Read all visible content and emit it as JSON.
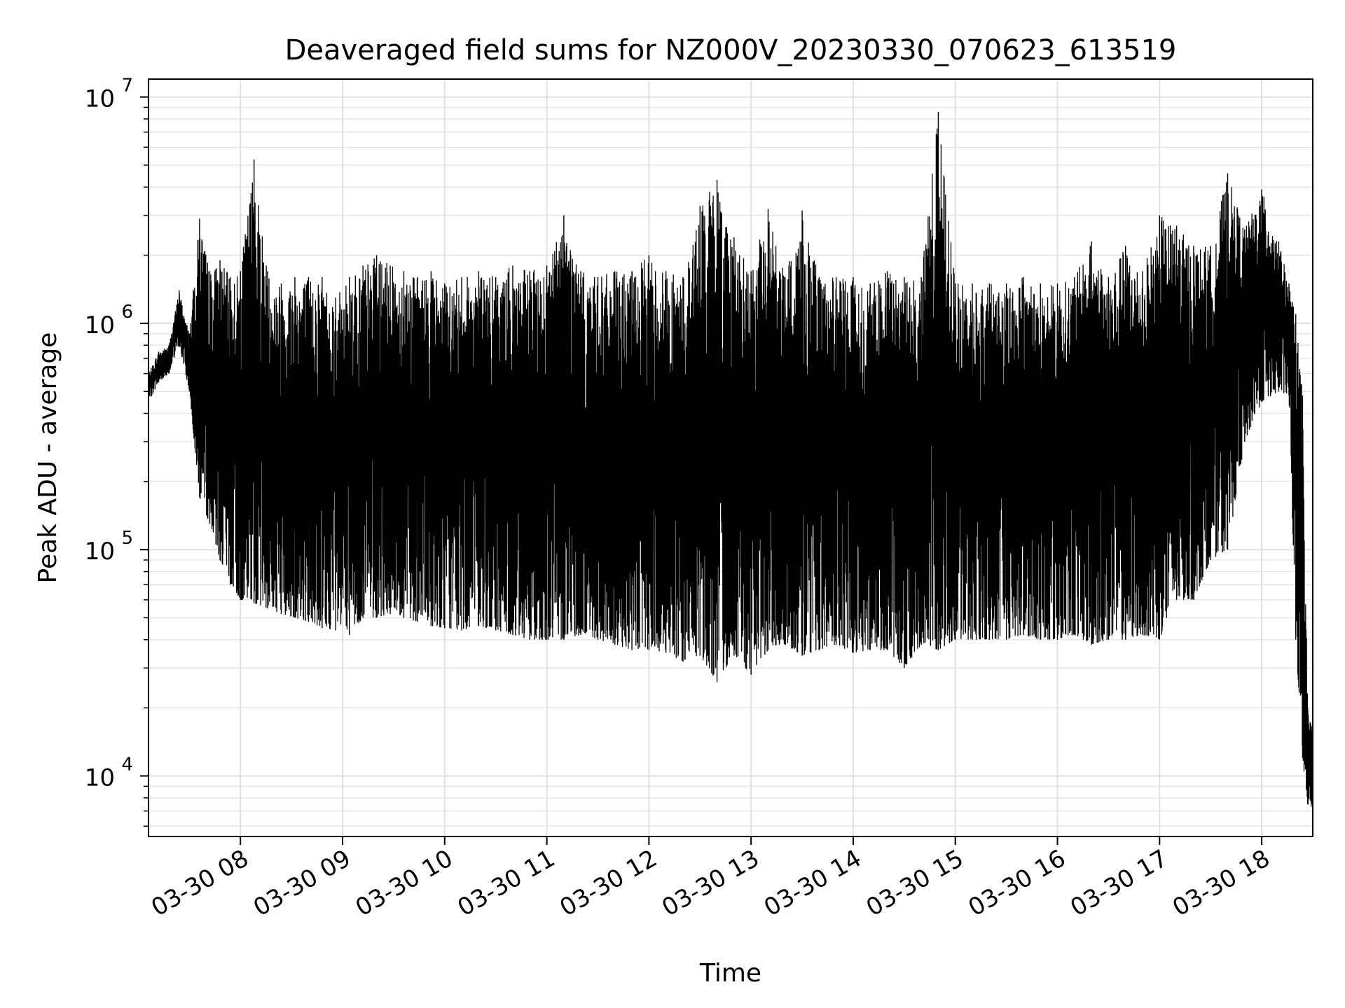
{
  "chart_data": {
    "type": "line",
    "title": "Deaveraged field sums for NZ000V_20230330_070623_613519",
    "xlabel": "Time",
    "ylabel": "Peak ADU - average",
    "x_range": [
      "03-30 07:06",
      "03-30 18:30"
    ],
    "ylim": [
      5400,
      12000000
    ],
    "y_scale": "log",
    "grid": true,
    "line_color": "#000000",
    "x_ticks": [
      "03-30 08",
      "03-30 09",
      "03-30 10",
      "03-30 11",
      "03-30 12",
      "03-30 13",
      "03-30 14",
      "03-30 15",
      "03-30 16",
      "03-30 17",
      "03-30 18"
    ],
    "y_ticks": [
      {
        "value": 10000,
        "base": "10",
        "exp": "4"
      },
      {
        "value": 100000,
        "base": "10",
        "exp": "5"
      },
      {
        "value": 1000000,
        "base": "10",
        "exp": "6"
      },
      {
        "value": 10000000,
        "base": "10",
        "exp": "7"
      }
    ],
    "series": [
      {
        "x": [
          "03-30 07:06",
          "03-30 07:12",
          "03-30 07:18",
          "03-30 07:24",
          "03-30 07:30",
          "03-30 07:36",
          "03-30 07:42",
          "03-30 07:48",
          "03-30 07:54",
          "03-30 08:00",
          "03-30 08:08",
          "03-30 08:16",
          "03-30 08:24",
          "03-30 08:32",
          "03-30 08:40",
          "03-30 08:48",
          "03-30 08:56",
          "03-30 09:04",
          "03-30 09:12",
          "03-30 09:20",
          "03-30 09:28",
          "03-30 09:36",
          "03-30 09:44",
          "03-30 09:52",
          "03-30 10:00",
          "03-30 10:10",
          "03-30 10:20",
          "03-30 10:30",
          "03-30 10:40",
          "03-30 10:50",
          "03-30 11:00",
          "03-30 11:10",
          "03-30 11:20",
          "03-30 11:30",
          "03-30 11:40",
          "03-30 11:50",
          "03-30 12:00",
          "03-30 12:10",
          "03-30 12:20",
          "03-30 12:30",
          "03-30 12:40",
          "03-30 12:50",
          "03-30 13:00",
          "03-30 13:10",
          "03-30 13:20",
          "03-30 13:30",
          "03-30 13:40",
          "03-30 13:50",
          "03-30 14:00",
          "03-30 14:10",
          "03-30 14:20",
          "03-30 14:30",
          "03-30 14:40",
          "03-30 14:50",
          "03-30 15:00",
          "03-30 15:10",
          "03-30 15:20",
          "03-30 15:30",
          "03-30 15:40",
          "03-30 15:50",
          "03-30 16:00",
          "03-30 16:10",
          "03-30 16:20",
          "03-30 16:30",
          "03-30 16:40",
          "03-30 16:50",
          "03-30 17:00",
          "03-30 17:10",
          "03-30 17:20",
          "03-30 17:30",
          "03-30 17:40",
          "03-30 17:50",
          "03-30 18:00",
          "03-30 18:10",
          "03-30 18:16",
          "03-30 18:20",
          "03-30 18:24",
          "03-30 18:27",
          "03-30 18:30"
        ],
        "upper": [
          600000,
          750000,
          800000,
          1400000,
          900000,
          2900000,
          1700000,
          1900000,
          1600000,
          1700000,
          5300000,
          1700000,
          1500000,
          1600000,
          1600000,
          1600000,
          1300000,
          1600000,
          1800000,
          2000000,
          1800000,
          1700000,
          1600000,
          1700000,
          1500000,
          1600000,
          1700000,
          1600000,
          1800000,
          1700000,
          1800000,
          3000000,
          1700000,
          1600000,
          1700000,
          1700000,
          2000000,
          1700000,
          1600000,
          3300000,
          4300000,
          2400000,
          1700000,
          3200000,
          1600000,
          3150000,
          1600000,
          1600000,
          1600000,
          1500000,
          1700000,
          1600000,
          1600000,
          8600000,
          1500000,
          1500000,
          1500000,
          1500000,
          1600000,
          1500000,
          1500000,
          1600000,
          2300000,
          1600000,
          2200000,
          1700000,
          3000000,
          2700000,
          2200000,
          2200000,
          4600000,
          2600000,
          3900000,
          2300000,
          1500000,
          1100000,
          480000,
          20000,
          16000
        ],
        "lower": [
          450000,
          550000,
          600000,
          800000,
          500000,
          170000,
          130000,
          90000,
          70000,
          60000,
          58000,
          55000,
          52000,
          50000,
          48000,
          45000,
          44000,
          42000,
          50000,
          50000,
          52000,
          50000,
          48000,
          46000,
          45000,
          44000,
          46000,
          44000,
          42000,
          40000,
          40000,
          40000,
          42000,
          40000,
          38000,
          36000,
          36000,
          35000,
          32000,
          34000,
          26000,
          34000,
          28000,
          36000,
          38000,
          34000,
          36000,
          38000,
          35000,
          36000,
          36000,
          30000,
          38000,
          36000,
          40000,
          40000,
          40000,
          40000,
          42000,
          40000,
          40000,
          42000,
          38000,
          40000,
          40000,
          42000,
          40000,
          60000,
          60000,
          90000,
          100000,
          300000,
          450000,
          500000,
          480000,
          40000,
          12000,
          7500,
          7200
        ]
      }
    ]
  }
}
